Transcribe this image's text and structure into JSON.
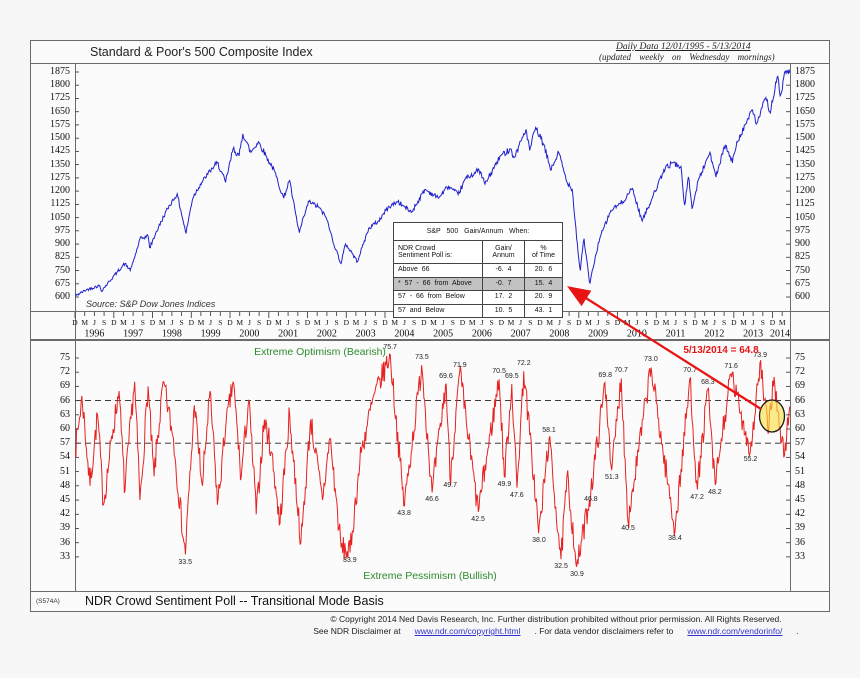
{
  "header": {
    "title": "Standard & Poor's 500 Composite Index",
    "daily_data": "Daily Data 12/01/1995 - 5/13/2014",
    "updated": "(updated weekly on Wednesday mornings)"
  },
  "top_chart": {
    "source": "Source: S&P Dow Jones Indices"
  },
  "stats_table": {
    "title": "S&P 500 Gain/Annum When:",
    "col1_header": "NDR Crowd\nSentiment Poll is:",
    "col2_header": "Gain/\nAnnum",
    "col3_header": "%\nof Time",
    "rows": [
      {
        "label": "Above 66",
        "gain": "-6. 4",
        "pct": "20. 6",
        "highlight": false
      },
      {
        "label": "* 57 - 66 from Above",
        "gain": "-0. 7",
        "pct": "15. 4",
        "highlight": true
      },
      {
        "label": "57 - 66 from Below",
        "gain": "17. 2",
        "pct": "20. 9",
        "highlight": false
      },
      {
        "label": "57 and Below",
        "gain": "10. 5",
        "pct": "43. 1",
        "highlight": false
      }
    ]
  },
  "bottom_chart": {
    "zone_top": "Extreme Optimism (Bearish)",
    "zone_bottom": "Extreme Pessimism (Bullish)",
    "latest_annotation": "5/13/2014 = 64.8"
  },
  "footer": {
    "chart_id": "(S574A)",
    "title": "NDR Crowd Sentiment Poll -- Transitional Mode Basis",
    "copyright": "© Copyright 2014 Ned Davis Research, Inc.  Further distribution prohibited without prior permission.  All Rights Reserved.",
    "see": "See NDR Disclaimer at",
    "link1": "www.ndr.com/copyright.html",
    "mid": ". For data vendor disclaimers refer to",
    "link2": "www.ndr.com/vendorinfo/",
    "end": "."
  },
  "colors": {
    "sp500_line": "#2020cc",
    "sentiment_line": "#e62222",
    "annotation_red": "#e81414",
    "zone_green": "#2e8b2e",
    "highlight_yellow": "rgba(250,225,60,0.6)",
    "table_highlight": "#c2c2c2"
  },
  "chart_data": [
    {
      "type": "line",
      "title": "Standard & Poor's 500 Composite Index",
      "x_label": "Date (Dec 1995 - May 13 2014, weekly)",
      "x_range": [
        1995.92,
        2014.37
      ],
      "y_ticks": [
        1875,
        1800,
        1725,
        1650,
        1575,
        1500,
        1425,
        1350,
        1275,
        1200,
        1125,
        1050,
        975,
        900,
        825,
        750,
        675,
        600
      ],
      "x_tick_years": [
        1996,
        1997,
        1998,
        1999,
        2000,
        2001,
        2002,
        2003,
        2004,
        2005,
        2006,
        2007,
        2008,
        2009,
        2010,
        2011,
        2012,
        2013,
        2014
      ],
      "month_letters": [
        "D",
        "M",
        "J",
        "S"
      ],
      "series": [
        {
          "name": "S&P 500 Composite Index",
          "color": "#2020cc",
          "keypoints": [
            [
              1995.92,
              606
            ],
            [
              1996.2,
              640
            ],
            [
              1996.55,
              665
            ],
            [
              1996.6,
              635
            ],
            [
              1997.0,
              740
            ],
            [
              1997.2,
              790
            ],
            [
              1997.35,
              750
            ],
            [
              1997.6,
              930
            ],
            [
              1997.8,
              945
            ],
            [
              1997.85,
              880
            ],
            [
              1998.0,
              960
            ],
            [
              1998.3,
              1100
            ],
            [
              1998.55,
              1185
            ],
            [
              1998.65,
              1090
            ],
            [
              1998.78,
              960
            ],
            [
              1998.95,
              1160
            ],
            [
              1999.15,
              1240
            ],
            [
              1999.3,
              1280
            ],
            [
              1999.45,
              1330
            ],
            [
              1999.6,
              1360
            ],
            [
              1999.8,
              1250
            ],
            [
              2000.0,
              1440
            ],
            [
              2000.15,
              1400
            ],
            [
              2000.25,
              1525
            ],
            [
              2000.45,
              1420
            ],
            [
              2000.65,
              1480
            ],
            [
              2000.9,
              1380
            ],
            [
              2001.05,
              1320
            ],
            [
              2001.3,
              1160
            ],
            [
              2001.45,
              1260
            ],
            [
              2001.7,
              965
            ],
            [
              2001.95,
              1140
            ],
            [
              2002.2,
              1110
            ],
            [
              2002.4,
              1050
            ],
            [
              2002.6,
              900
            ],
            [
              2002.78,
              790
            ],
            [
              2002.9,
              900
            ],
            [
              2003.05,
              855
            ],
            [
              2003.2,
              800
            ],
            [
              2003.5,
              990
            ],
            [
              2003.75,
              1030
            ],
            [
              2004.0,
              1110
            ],
            [
              2004.25,
              1140
            ],
            [
              2004.6,
              1080
            ],
            [
              2004.95,
              1210
            ],
            [
              2005.3,
              1160
            ],
            [
              2005.55,
              1230
            ],
            [
              2005.8,
              1180
            ],
            [
              2006.0,
              1270
            ],
            [
              2006.35,
              1320
            ],
            [
              2006.5,
              1240
            ],
            [
              2006.9,
              1400
            ],
            [
              2007.15,
              1440
            ],
            [
              2007.25,
              1390
            ],
            [
              2007.55,
              1550
            ],
            [
              2007.65,
              1430
            ],
            [
              2007.8,
              1560
            ],
            [
              2008.0,
              1470
            ],
            [
              2008.2,
              1320
            ],
            [
              2008.4,
              1420
            ],
            [
              2008.6,
              1260
            ],
            [
              2008.75,
              1210
            ],
            [
              2008.88,
              900
            ],
            [
              2008.95,
              750
            ],
            [
              2009.05,
              930
            ],
            [
              2009.2,
              676
            ],
            [
              2009.45,
              930
            ],
            [
              2009.75,
              1090
            ],
            [
              2010.05,
              1140
            ],
            [
              2010.3,
              1215
            ],
            [
              2010.55,
              1030
            ],
            [
              2010.85,
              1180
            ],
            [
              2011.15,
              1330
            ],
            [
              2011.35,
              1360
            ],
            [
              2011.55,
              1340
            ],
            [
              2011.65,
              1120
            ],
            [
              2011.75,
              1280
            ],
            [
              2011.85,
              1100
            ],
            [
              2012.0,
              1260
            ],
            [
              2012.3,
              1420
            ],
            [
              2012.45,
              1280
            ],
            [
              2012.7,
              1460
            ],
            [
              2012.88,
              1360
            ],
            [
              2013.0,
              1480
            ],
            [
              2013.4,
              1660
            ],
            [
              2013.5,
              1580
            ],
            [
              2013.75,
              1730
            ],
            [
              2013.85,
              1650
            ],
            [
              2014.05,
              1850
            ],
            [
              2014.12,
              1740
            ],
            [
              2014.25,
              1880
            ],
            [
              2014.37,
              1870
            ]
          ]
        }
      ],
      "source": "Source: S&P Dow Jones Indices"
    },
    {
      "type": "line",
      "title": "NDR Crowd Sentiment Poll -- Transitional Mode Basis",
      "x_range": [
        1995.92,
        2014.37
      ],
      "y_ticks": [
        75,
        72,
        69,
        66,
        63,
        60,
        57,
        54,
        51,
        48,
        45,
        42,
        39,
        36,
        33
      ],
      "dashed_levels": [
        66,
        57
      ],
      "zones": {
        "above_66": "Extreme Optimism (Bearish)",
        "below_57_region": "Extreme Pessimism (Bullish)"
      },
      "latest": {
        "t": 2014.37,
        "value": 64.8,
        "label": "5/13/2014 = 64.8"
      },
      "series": [
        {
          "name": "NDR Crowd Sentiment Poll",
          "color": "#e62222",
          "keypoints": [
            [
              1995.92,
              55
            ],
            [
              1996.1,
              67
            ],
            [
              1996.3,
              48
            ],
            [
              1996.5,
              63
            ],
            [
              1996.65,
              44
            ],
            [
              1996.9,
              60
            ],
            [
              1997.05,
              68
            ],
            [
              1997.2,
              47
            ],
            [
              1997.45,
              70
            ],
            [
              1997.6,
              45
            ],
            [
              1997.8,
              69
            ],
            [
              1997.95,
              50
            ],
            [
              1998.2,
              70
            ],
            [
              1998.45,
              58
            ],
            [
              1998.76,
              33.5
            ],
            [
              1999.0,
              65
            ],
            [
              1999.2,
              48
            ],
            [
              1999.4,
              68
            ],
            [
              1999.6,
              44
            ],
            [
              1999.8,
              60
            ],
            [
              2000.0,
              70
            ],
            [
              2000.2,
              50
            ],
            [
              2000.4,
              66
            ],
            [
              2000.6,
              42
            ],
            [
              2000.8,
              62
            ],
            [
              2001.0,
              55
            ],
            [
              2001.2,
              40
            ],
            [
              2001.45,
              63
            ],
            [
              2001.75,
              36
            ],
            [
              2002.0,
              62
            ],
            [
              2002.3,
              45
            ],
            [
              2002.5,
              58
            ],
            [
              2002.78,
              35
            ],
            [
              2003.01,
              33.9
            ],
            [
              2003.3,
              55
            ],
            [
              2003.6,
              66
            ],
            [
              2004.05,
              75.7
            ],
            [
              2004.41,
              43.8
            ],
            [
              2004.87,
              73.5
            ],
            [
              2005.13,
              46.6
            ],
            [
              2005.49,
              69.6
            ],
            [
              2005.6,
              49.7
            ],
            [
              2005.85,
              71.9
            ],
            [
              2006.32,
              42.5
            ],
            [
              2006.86,
              70.5
            ],
            [
              2007.0,
              49.9
            ],
            [
              2007.19,
              69.5
            ],
            [
              2007.32,
              47.6
            ],
            [
              2007.5,
              72.2
            ],
            [
              2007.89,
              38.0
            ],
            [
              2008.15,
              58.1
            ],
            [
              2008.46,
              32.5
            ],
            [
              2008.62,
              50
            ],
            [
              2008.87,
              30.9
            ],
            [
              2009.23,
              46.8
            ],
            [
              2009.6,
              69.8
            ],
            [
              2009.77,
              51.3
            ],
            [
              2010.01,
              70.7
            ],
            [
              2010.19,
              40.5
            ],
            [
              2010.78,
              73.0
            ],
            [
              2011.1,
              55
            ],
            [
              2011.4,
              38.4
            ],
            [
              2011.79,
              70.7
            ],
            [
              2011.97,
              47.2
            ],
            [
              2012.25,
              68.3
            ],
            [
              2012.43,
              48.2
            ],
            [
              2012.85,
              71.6
            ],
            [
              2013.35,
              55.2
            ],
            [
              2013.6,
              73.9
            ],
            [
              2013.8,
              59
            ],
            [
              2013.95,
              71
            ],
            [
              2014.1,
              60
            ],
            [
              2014.22,
              54.5
            ],
            [
              2014.37,
              64.8
            ]
          ]
        }
      ],
      "labeled_points": [
        {
          "t": 2004.05,
          "v": 75.7,
          "pos": "above"
        },
        {
          "t": 2004.87,
          "v": 73.5,
          "pos": "above"
        },
        {
          "t": 2005.49,
          "v": 69.6,
          "pos": "above"
        },
        {
          "t": 2005.85,
          "v": 71.9,
          "pos": "above"
        },
        {
          "t": 2006.86,
          "v": 70.5,
          "pos": "above"
        },
        {
          "t": 2007.19,
          "v": 69.5,
          "pos": "above"
        },
        {
          "t": 2007.5,
          "v": 72.2,
          "pos": "above"
        },
        {
          "t": 2008.15,
          "v": 58.1,
          "pos": "above"
        },
        {
          "t": 2009.6,
          "v": 69.8,
          "pos": "above"
        },
        {
          "t": 2010.01,
          "v": 70.7,
          "pos": "above"
        },
        {
          "t": 2010.78,
          "v": 73.0,
          "pos": "above"
        },
        {
          "t": 2011.79,
          "v": 70.7,
          "pos": "above"
        },
        {
          "t": 2012.25,
          "v": 68.3,
          "pos": "above"
        },
        {
          "t": 2012.85,
          "v": 71.6,
          "pos": "above"
        },
        {
          "t": 2013.6,
          "v": 73.9,
          "pos": "above"
        },
        {
          "t": 1998.76,
          "v": 33.5,
          "pos": "below"
        },
        {
          "t": 2003.01,
          "v": 33.9,
          "pos": "below"
        },
        {
          "t": 2004.41,
          "v": 43.8,
          "pos": "below"
        },
        {
          "t": 2005.13,
          "v": 46.6,
          "pos": "below"
        },
        {
          "t": 2005.6,
          "v": 49.7,
          "pos": "below"
        },
        {
          "t": 2006.32,
          "v": 42.5,
          "pos": "below"
        },
        {
          "t": 2007.0,
          "v": 49.9,
          "pos": "below"
        },
        {
          "t": 2007.32,
          "v": 47.6,
          "pos": "below"
        },
        {
          "t": 2007.89,
          "v": 38.0,
          "pos": "below"
        },
        {
          "t": 2008.46,
          "v": 32.5,
          "pos": "below"
        },
        {
          "t": 2008.87,
          "v": 30.9,
          "pos": "below"
        },
        {
          "t": 2009.23,
          "v": 46.8,
          "pos": "below"
        },
        {
          "t": 2009.77,
          "v": 51.3,
          "pos": "below"
        },
        {
          "t": 2010.19,
          "v": 40.5,
          "pos": "below"
        },
        {
          "t": 2011.4,
          "v": 38.4,
          "pos": "below"
        },
        {
          "t": 2011.97,
          "v": 47.2,
          "pos": "below"
        },
        {
          "t": 2012.43,
          "v": 48.2,
          "pos": "below"
        },
        {
          "t": 2013.35,
          "v": 55.2,
          "pos": "below"
        }
      ]
    }
  ]
}
